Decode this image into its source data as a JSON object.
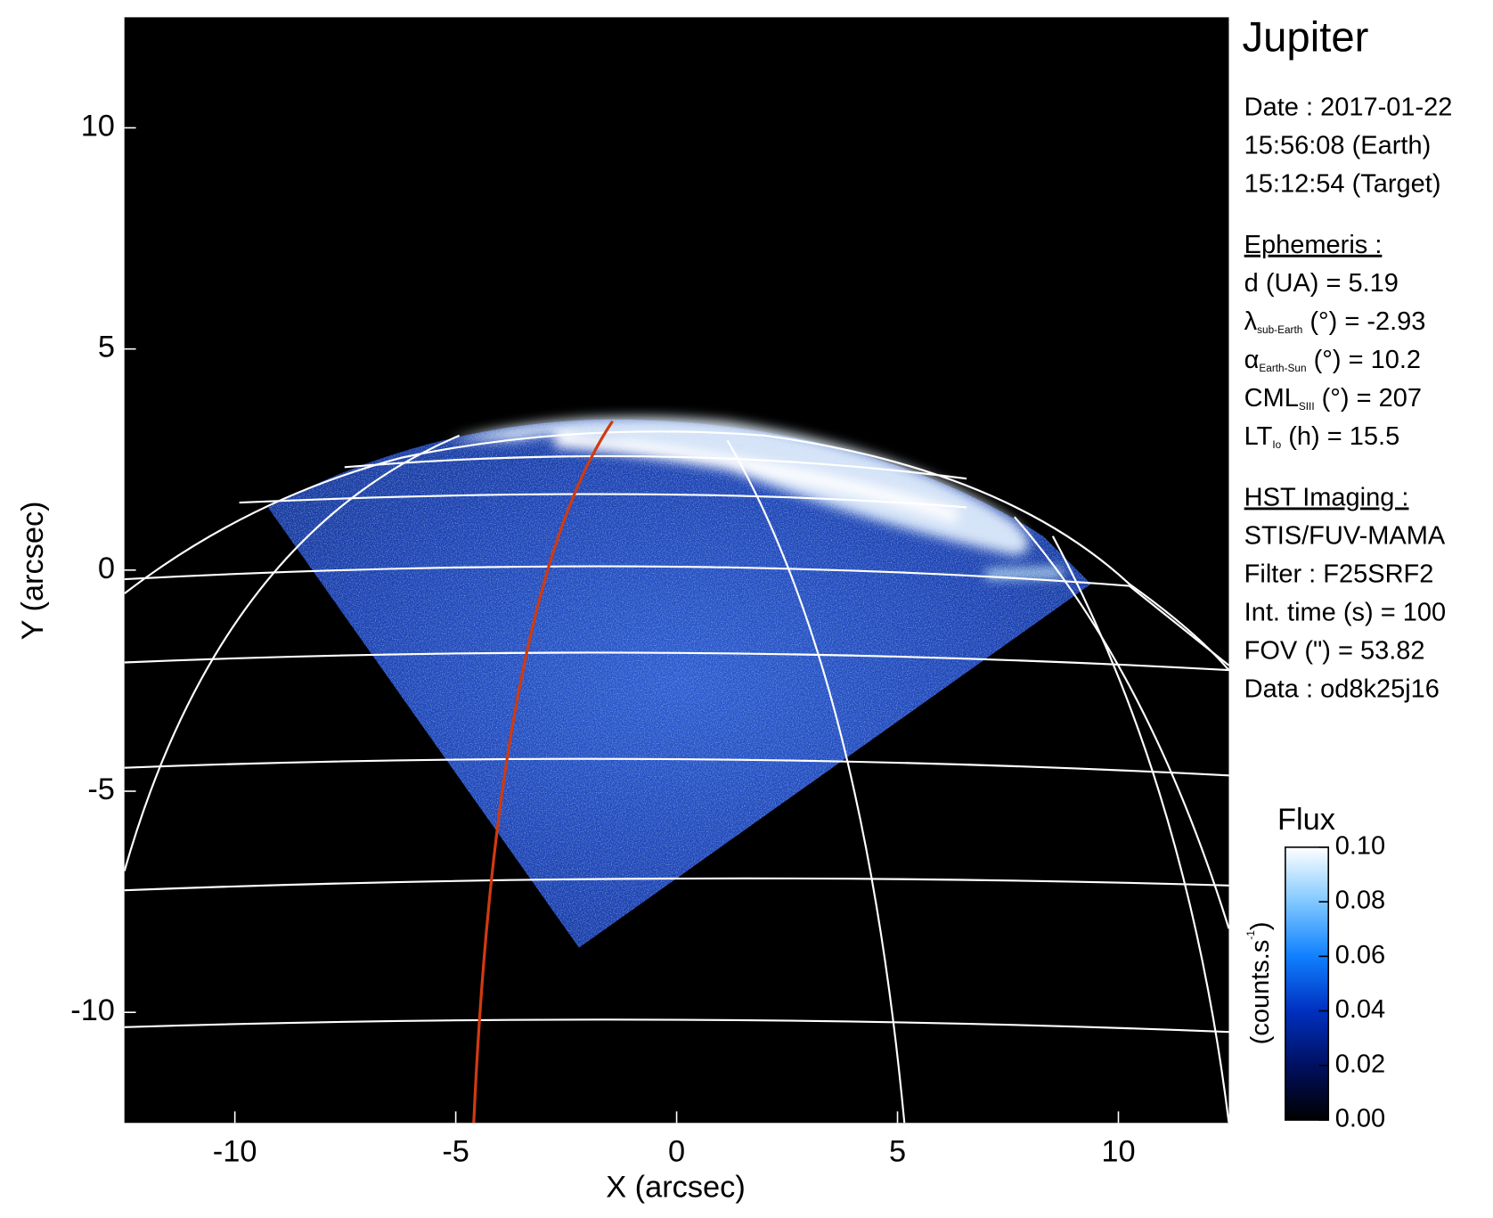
{
  "chart_data": {
    "type": "image",
    "title": "Jupiter",
    "x_label": "X (arcsec)",
    "y_label": "Y (arcsec)",
    "xlim": [
      -12.5,
      12.5
    ],
    "ylim": [
      -12.5,
      12.5
    ],
    "xticks": [
      -10,
      -5,
      0,
      5,
      10
    ],
    "yticks": [
      -10,
      -5,
      0,
      5,
      10
    ],
    "info": [
      {
        "color": "#000000",
        "lines": [
          [
            {
              "t": "Date : 2017-01-22"
            }
          ],
          [
            {
              "t": "15:56:08 (Earth)"
            }
          ],
          [
            {
              "t": "15:12:54 (Target)"
            }
          ]
        ]
      },
      {
        "color": "#000000",
        "heading": "Ephemeris :",
        "lines": [
          [
            {
              "t": "d (UA)    = 5.19"
            }
          ],
          [
            {
              "t": "λ"
            },
            {
              "t": "sub-Earth",
              "sub": true
            },
            {
              "t": " (°) = -2.93"
            }
          ],
          [
            {
              "t": "α"
            },
            {
              "t": "Earth-Sun",
              "sub": true
            },
            {
              "t": " (°) = 10.2"
            }
          ],
          [
            {
              "t": "CML"
            },
            {
              "t": "SIII",
              "sub": true
            },
            {
              "t": " (°) = 207"
            }
          ],
          [
            {
              "t": "LT"
            },
            {
              "t": "Io",
              "sub": true
            },
            {
              "t": " (h) = 15.5"
            }
          ]
        ]
      },
      {
        "color": "#a0a0a0",
        "heading": "HST Imaging :",
        "lines": [
          [
            {
              "t": "STIS/FUV-MAMA"
            }
          ],
          [
            {
              "t": "Filter : F25SRF2"
            }
          ],
          [
            {
              "t": "Int. time (s) = 100"
            }
          ],
          [
            {
              "t": "FOV (\") = 53.82"
            }
          ],
          [
            {
              "t": "Data : od8k25j16"
            }
          ]
        ]
      }
    ],
    "colorbar": {
      "title": "Flux",
      "unit": [
        {
          "t": "(counts.s"
        },
        {
          "t": "-1",
          "sup": true
        },
        {
          "t": ")"
        }
      ],
      "clim": [
        0,
        0.1
      ],
      "ticks": [
        {
          "value": 0,
          "label": "0.00"
        },
        {
          "value": 0.02,
          "label": "0.02"
        },
        {
          "value": 0.04,
          "label": "0.04"
        },
        {
          "value": 0.06,
          "label": "0.06"
        },
        {
          "value": 0.08,
          "label": "0.08"
        },
        {
          "value": 0.1,
          "label": "0.10"
        }
      ],
      "colors": [
        "#000000",
        "#001060",
        "#0030c0",
        "#1080ff",
        "#80c8ff",
        "#ffffff"
      ]
    }
  }
}
